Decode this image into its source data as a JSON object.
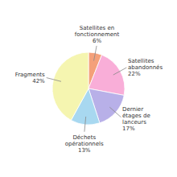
{
  "chart_data": {
    "type": "pie",
    "categories": [
      "Satellites en\nfonctionnement\n6%",
      "Satellites\nabandonnés\n22%",
      "Dernier\nétages de\nlanceurs\n17%",
      "Déchets\nopérationnels\n13%",
      "Fragments\n42%"
    ],
    "values": [
      6,
      22,
      17,
      13,
      42
    ],
    "colors": [
      "#f4a07a",
      "#f9aed8",
      "#b8b0e8",
      "#a8d8f0",
      "#f5f5b0"
    ]
  }
}
